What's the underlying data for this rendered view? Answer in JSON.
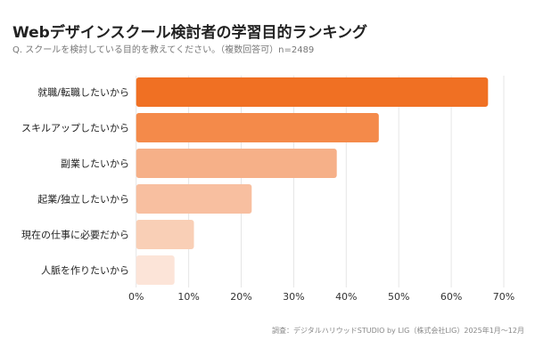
{
  "chart_data": {
    "type": "bar",
    "orientation": "horizontal",
    "title": "Webデザインスクール検討者の学習目的ランキング",
    "subtitle": "Q. スクールを検討している目的を教えてください。（複数回答可）n=2489",
    "categories": [
      "就職/転職したいから",
      "スキルアップしたいから",
      "副業したいから",
      "起業/独立したいから",
      "現在の仕事に必要だから",
      "人脈を作りたいから"
    ],
    "values": [
      67,
      46.2,
      38.2,
      22,
      11,
      7.3
    ],
    "unit": "%",
    "xlim": [
      0,
      70
    ],
    "xticks": [
      "0%",
      "10%",
      "20%",
      "30%",
      "40%",
      "50%",
      "60%",
      "70%"
    ],
    "grid": true,
    "legend": "none",
    "colors": [
      "#f07023",
      "#f48a4a",
      "#f6b088",
      "#f8bfa0",
      "#f9cfb6",
      "#fce4d8"
    ],
    "source": "調査：デジタルハリウッドSTUDIO by LIG（株式会社LIG）2025年1月〜12月"
  }
}
